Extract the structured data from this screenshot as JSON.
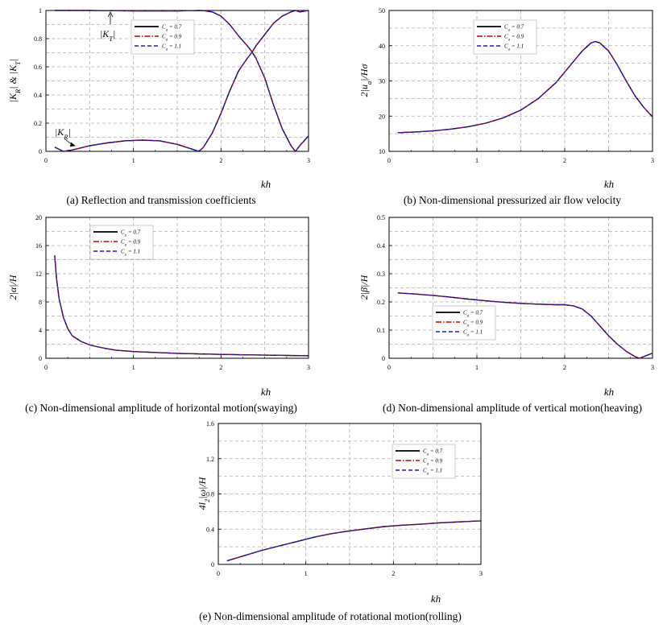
{
  "chart_data": [
    {
      "id": "a",
      "type": "line",
      "caption": "(a) Reflection and transmission coefficients",
      "xlabel": "kh",
      "ylabel": "|K_R| & |K_T|",
      "xlim": [
        0,
        3
      ],
      "ylim": [
        0,
        1
      ],
      "xticks": [
        0,
        1,
        2,
        3
      ],
      "yticks": [
        0,
        0.2,
        0.4,
        0.6,
        0.8,
        1
      ],
      "xtick_labels": [
        "0",
        "1",
        "2",
        "3"
      ],
      "ytick_labels": [
        "0",
        "0.2",
        "0.4",
        "0.6",
        "0.8",
        "1"
      ],
      "legend": [
        "C_a = 0.7",
        "C_a = 0.9",
        "C_a = 1.1"
      ],
      "legend_position": "top-center",
      "annotations": [
        "|K_T|",
        "|K_R|"
      ],
      "series": [
        {
          "x": [
            0.1,
            0.2,
            0.3,
            0.5,
            0.7,
            0.9,
            1.1,
            1.3,
            1.5,
            1.6,
            1.7,
            1.75,
            1.8,
            1.9,
            2.0,
            2.1,
            2.2,
            2.3,
            2.35,
            2.4,
            2.5,
            2.6,
            2.7,
            2.8,
            2.85,
            2.9,
            3.0
          ],
          "y": [
            0.03,
            0.0,
            0.01,
            0.04,
            0.06,
            0.075,
            0.08,
            0.075,
            0.05,
            0.03,
            0.01,
            0.0,
            0.03,
            0.13,
            0.27,
            0.43,
            0.57,
            0.66,
            0.7,
            0.75,
            0.83,
            0.91,
            0.96,
            0.99,
            1.0,
            0.99,
            1.0
          ]
        },
        {
          "x": [
            0.1,
            0.5,
            1.0,
            1.5,
            1.7,
            1.75,
            1.8,
            1.9,
            2.0,
            2.1,
            2.2,
            2.3,
            2.35,
            2.4,
            2.5,
            2.6,
            2.7,
            2.8,
            2.85,
            2.9,
            3.0
          ],
          "y": [
            1.0,
            1.0,
            0.997,
            0.997,
            0.999,
            1.0,
            0.999,
            0.99,
            0.96,
            0.9,
            0.82,
            0.75,
            0.71,
            0.66,
            0.52,
            0.33,
            0.16,
            0.04,
            0.0,
            0.04,
            0.11
          ]
        }
      ]
    },
    {
      "id": "b",
      "type": "line",
      "caption": "(b) Non-dimensional pressurized air flow velocity",
      "xlabel": "kh",
      "ylabel": "2|u_a|/Hσ",
      "xlim": [
        0,
        3
      ],
      "ylim": [
        10,
        50
      ],
      "xticks": [
        0,
        1,
        2,
        3
      ],
      "yticks": [
        10,
        20,
        30,
        40,
        50
      ],
      "xtick_labels": [
        "0",
        "1",
        "2",
        "3"
      ],
      "ytick_labels": [
        "10",
        "20",
        "30",
        "40",
        "50"
      ],
      "legend": [
        "C_a = 0.7",
        "C_a = 0.9",
        "C_a = 1.1"
      ],
      "legend_position": "top-center",
      "series": [
        {
          "x": [
            0.1,
            0.3,
            0.5,
            0.7,
            0.9,
            1.1,
            1.3,
            1.5,
            1.7,
            1.9,
            2.0,
            2.1,
            2.2,
            2.3,
            2.35,
            2.4,
            2.5,
            2.6,
            2.7,
            2.8,
            2.9,
            3.0
          ],
          "y": [
            15.3,
            15.5,
            15.8,
            16.3,
            17.0,
            18.0,
            19.5,
            21.7,
            25.0,
            29.5,
            32.5,
            35.5,
            38.5,
            40.8,
            41.2,
            40.8,
            38.5,
            34.5,
            30.0,
            25.8,
            22.5,
            19.8
          ]
        }
      ]
    },
    {
      "id": "c",
      "type": "line",
      "caption": "(c) Non-dimensional amplitude of horizontal motion(swaying)",
      "xlabel": "kh",
      "ylabel": "2|α|/H",
      "xlim": [
        0,
        3
      ],
      "ylim": [
        0,
        20
      ],
      "xticks": [
        0,
        1,
        2,
        3
      ],
      "yticks": [
        0,
        4,
        8,
        12,
        16,
        20
      ],
      "xtick_labels": [
        "0",
        "1",
        "2",
        "3"
      ],
      "ytick_labels": [
        "0",
        "4",
        "8",
        "12",
        "16",
        "20"
      ],
      "legend": [
        "C_a = 0.7",
        "C_a = 0.9",
        "C_a = 1.1"
      ],
      "legend_position": "top-left",
      "series": [
        {
          "x": [
            0.1,
            0.12,
            0.15,
            0.2,
            0.25,
            0.3,
            0.4,
            0.5,
            0.6,
            0.7,
            0.8,
            0.9,
            1.0,
            1.2,
            1.5,
            2.0,
            2.5,
            3.0
          ],
          "y": [
            14.6,
            11.5,
            8.5,
            5.8,
            4.2,
            3.2,
            2.4,
            1.9,
            1.6,
            1.35,
            1.15,
            1.05,
            0.95,
            0.85,
            0.7,
            0.55,
            0.45,
            0.35
          ]
        }
      ]
    },
    {
      "id": "d",
      "type": "line",
      "caption": "(d) Non-dimensional amplitude of vertical motion(heaving)",
      "xlabel": "kh",
      "ylabel": "2|β|/H",
      "xlim": [
        0,
        3
      ],
      "ylim": [
        0,
        0.5
      ],
      "xticks": [
        0,
        1,
        2,
        3
      ],
      "yticks": [
        0,
        0.1,
        0.2,
        0.3,
        0.4,
        0.5
      ],
      "xtick_labels": [
        "0",
        "1",
        "2",
        "3"
      ],
      "ytick_labels": [
        "0",
        "0.1",
        "0.2",
        "0.3",
        "0.4",
        "0.5"
      ],
      "legend": [
        "C_a = 0.7",
        "C_a = 0.9",
        "C_a = 1.1"
      ],
      "legend_position": "bottom-center",
      "series": [
        {
          "x": [
            0.1,
            0.3,
            0.5,
            0.7,
            0.9,
            1.1,
            1.3,
            1.5,
            1.7,
            1.9,
            2.0,
            2.1,
            2.2,
            2.3,
            2.4,
            2.5,
            2.6,
            2.7,
            2.8,
            2.85,
            2.9,
            3.0
          ],
          "y": [
            0.232,
            0.228,
            0.223,
            0.217,
            0.21,
            0.204,
            0.199,
            0.195,
            0.192,
            0.19,
            0.19,
            0.186,
            0.175,
            0.15,
            0.115,
            0.08,
            0.05,
            0.025,
            0.006,
            0.0,
            0.006,
            0.018
          ]
        }
      ]
    },
    {
      "id": "e",
      "type": "line",
      "caption": "(e) Non-dimensional amplitude of rotational motion(rolling)",
      "xlabel": "kh",
      "ylabel": "4l_2|ω|/H",
      "xlim": [
        0,
        3
      ],
      "ylim": [
        0,
        1.6
      ],
      "xticks": [
        0,
        1,
        2,
        3
      ],
      "yticks": [
        0,
        0.4,
        0.8,
        1.2,
        1.6
      ],
      "xtick_labels": [
        "0",
        "1",
        "2",
        "3"
      ],
      "ytick_labels": [
        "0",
        "0.4",
        "0.8",
        "1.2",
        "1.6"
      ],
      "legend": [
        "C_a = 0.7",
        "C_a = 0.9",
        "C_a = 1.1"
      ],
      "legend_position": "top-right",
      "series": [
        {
          "x": [
            0.1,
            0.2,
            0.3,
            0.5,
            0.7,
            0.9,
            1.1,
            1.3,
            1.5,
            1.7,
            1.9,
            2.1,
            2.3,
            2.5,
            2.7,
            2.9,
            3.0
          ],
          "y": [
            0.04,
            0.07,
            0.1,
            0.16,
            0.21,
            0.26,
            0.31,
            0.35,
            0.38,
            0.405,
            0.43,
            0.445,
            0.455,
            0.47,
            0.48,
            0.49,
            0.495
          ]
        }
      ]
    }
  ],
  "style": {
    "colors": [
      "#000000",
      "#cc0000",
      "#1a1acc"
    ],
    "grid": "dashed",
    "annotation_a_kt": "|K_T|",
    "annotation_a_kr": "|K_R|"
  }
}
